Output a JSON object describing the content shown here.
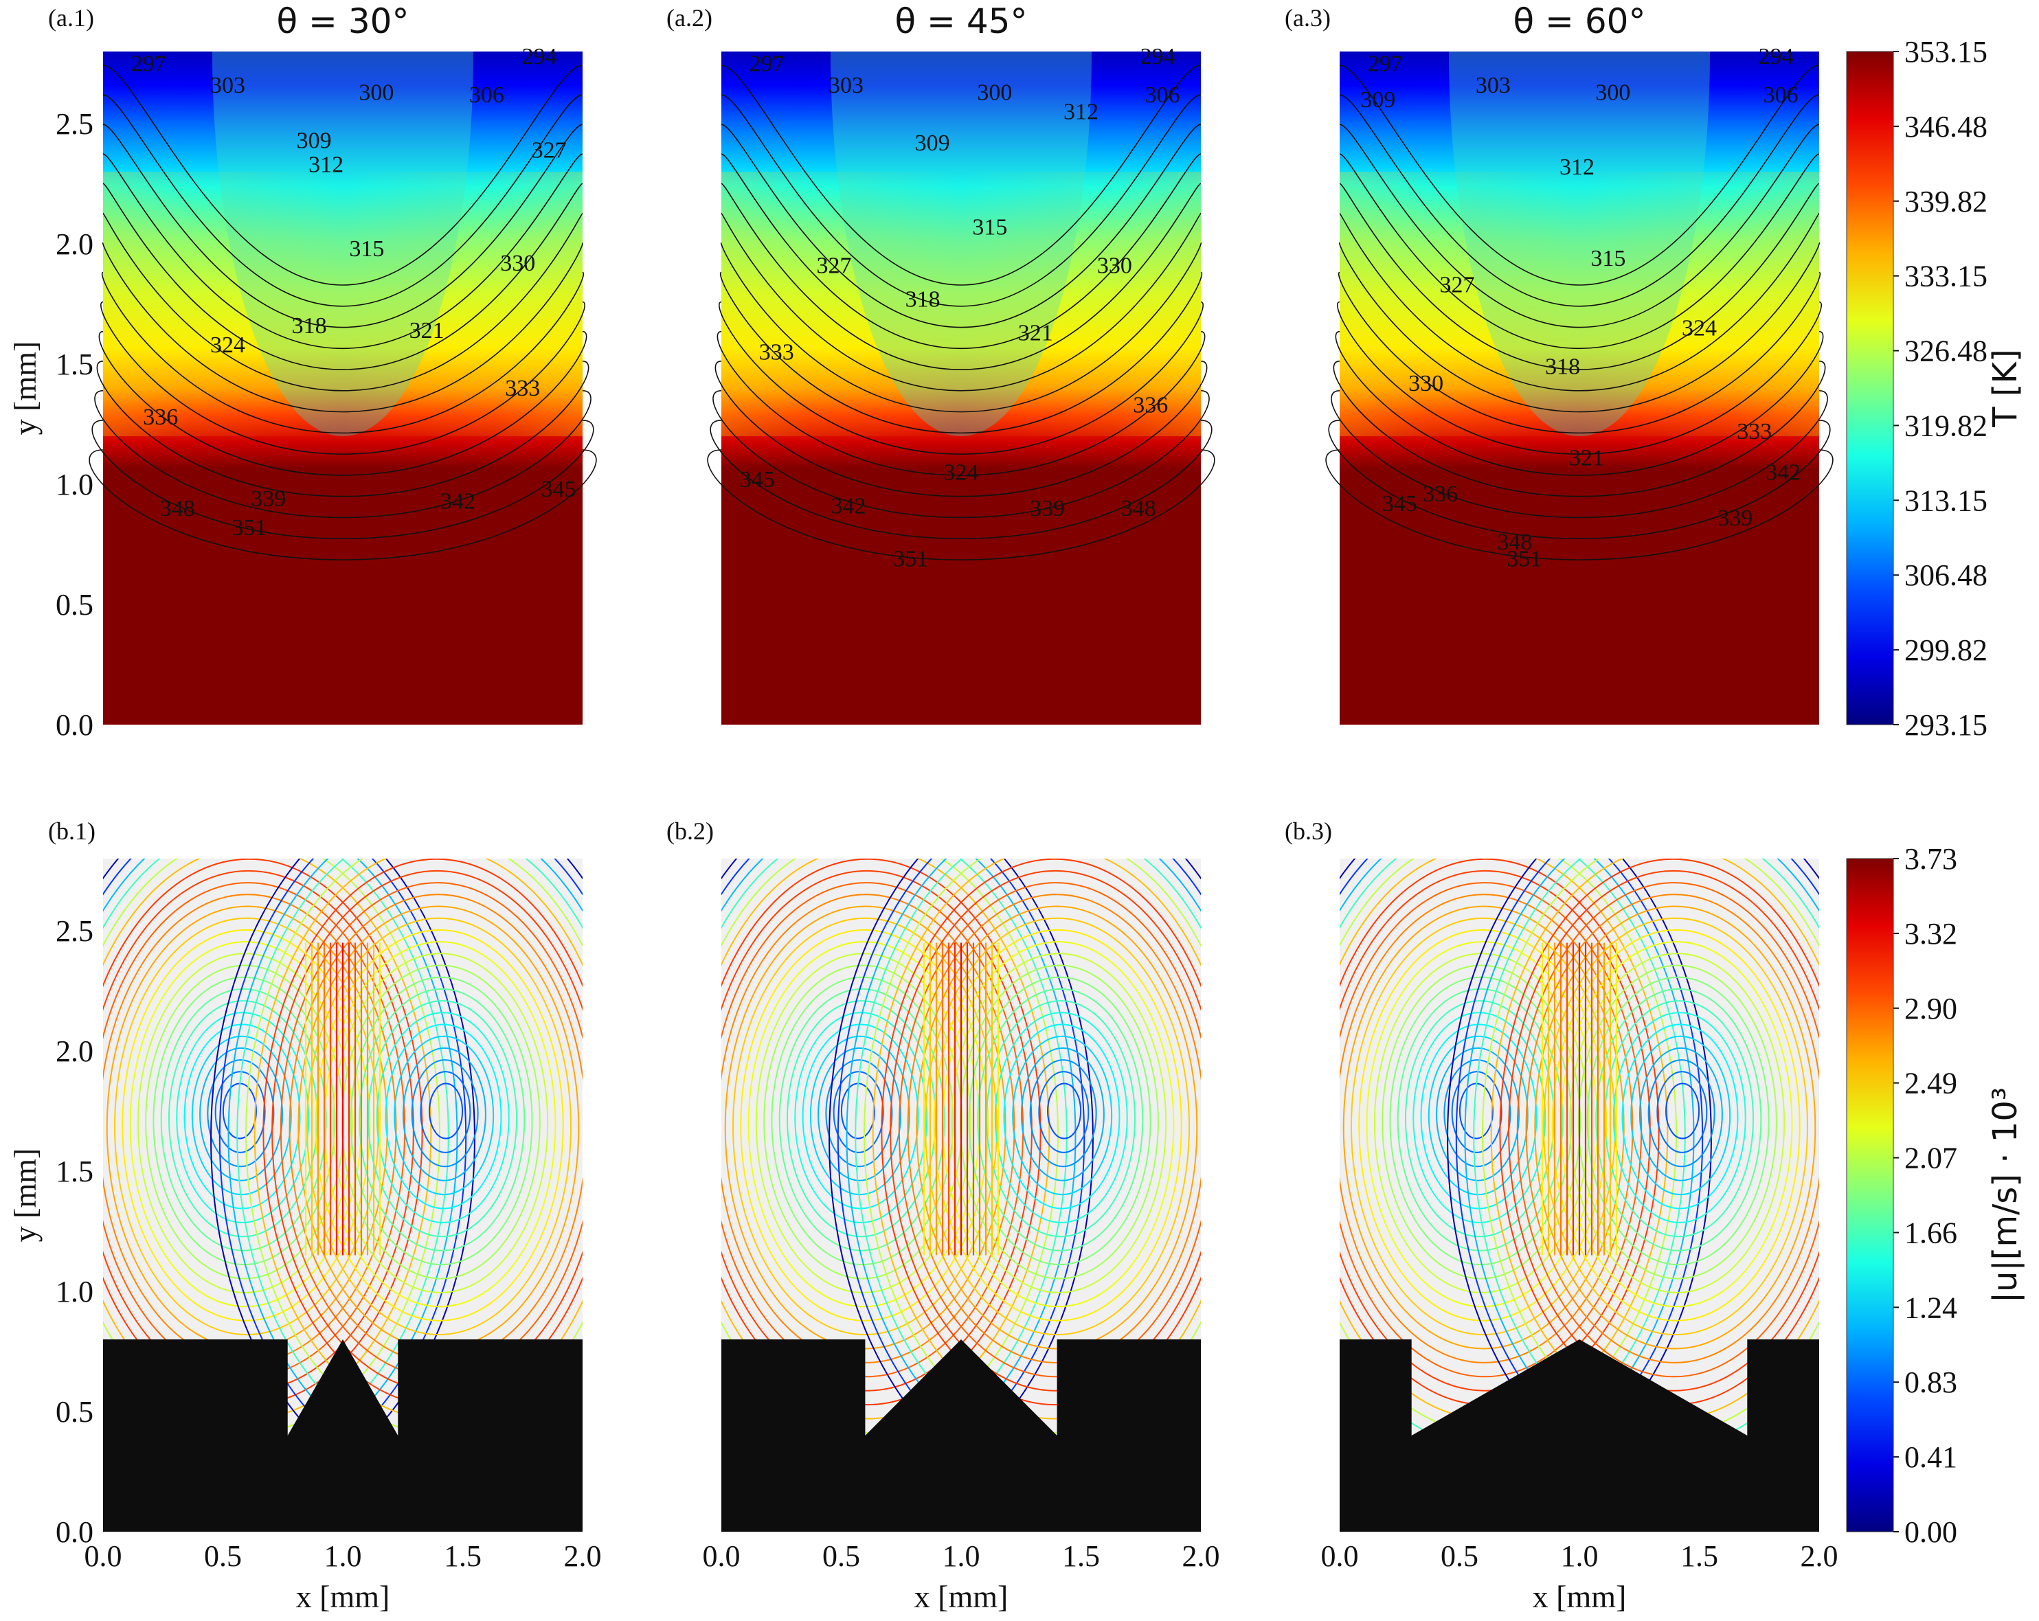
{
  "top_titles": [
    "θ = 30°",
    "θ = 45°",
    "θ = 60°"
  ],
  "panel_labels": {
    "top": [
      "(a.1)",
      "(a.2)",
      "(a.3)"
    ],
    "bottom": [
      "(b.1)",
      "(b.2)",
      "(b.3)"
    ]
  },
  "axes": {
    "xlabel": "x [mm]",
    "ylabel": "y [mm]",
    "x_ticks": [
      "0.0",
      "0.5",
      "1.0",
      "1.5",
      "2.0"
    ],
    "y_ticks": [
      "0.0",
      "0.5",
      "1.0",
      "1.5",
      "2.0",
      "2.5"
    ]
  },
  "colorbar_temperature": {
    "label": "T [K]",
    "ticks": [
      "353.15",
      "346.48",
      "339.82",
      "333.15",
      "326.48",
      "319.82",
      "313.15",
      "306.48",
      "299.82",
      "293.15"
    ],
    "colormap": "jet"
  },
  "colorbar_velocity": {
    "label": "|u|[m/s] · 10³",
    "ticks": [
      "3.73",
      "3.32",
      "2.90",
      "2.49",
      "2.07",
      "1.66",
      "1.24",
      "0.83",
      "0.41",
      "0.00"
    ],
    "colormap": "jet"
  },
  "chart_data": [
    {
      "type": "heatmap",
      "title": "θ = 30°",
      "panel": "(a.1)",
      "xlabel": "",
      "ylabel": "y [mm]",
      "xlim": [
        0,
        2.0
      ],
      "ylim": [
        0,
        2.8
      ],
      "vmin": 293.15,
      "vmax": 353.15,
      "contour_labels": [
        {
          "x": 0.19,
          "y": 2.75,
          "text": "297"
        },
        {
          "x": 0.52,
          "y": 2.66,
          "text": "303"
        },
        {
          "x": 1.14,
          "y": 2.63,
          "text": "300"
        },
        {
          "x": 1.6,
          "y": 2.62,
          "text": "306"
        },
        {
          "x": 1.82,
          "y": 2.78,
          "text": "294"
        },
        {
          "x": 0.88,
          "y": 2.43,
          "text": "309"
        },
        {
          "x": 0.93,
          "y": 2.33,
          "text": "312"
        },
        {
          "x": 1.1,
          "y": 1.98,
          "text": "315"
        },
        {
          "x": 1.86,
          "y": 2.39,
          "text": "327"
        },
        {
          "x": 1.73,
          "y": 1.92,
          "text": "330"
        },
        {
          "x": 0.86,
          "y": 1.66,
          "text": "318"
        },
        {
          "x": 1.35,
          "y": 1.64,
          "text": "321"
        },
        {
          "x": 0.52,
          "y": 1.58,
          "text": "324"
        },
        {
          "x": 1.75,
          "y": 1.4,
          "text": "333"
        },
        {
          "x": 0.24,
          "y": 1.28,
          "text": "336"
        },
        {
          "x": 0.69,
          "y": 0.94,
          "text": "339"
        },
        {
          "x": 1.48,
          "y": 0.93,
          "text": "342"
        },
        {
          "x": 1.9,
          "y": 0.98,
          "text": "345"
        },
        {
          "x": 0.31,
          "y": 0.9,
          "text": "348"
        },
        {
          "x": 0.61,
          "y": 0.82,
          "text": "351"
        }
      ]
    },
    {
      "type": "heatmap",
      "title": "θ = 45°",
      "panel": "(a.2)",
      "xlabel": "",
      "ylabel": "",
      "xlim": [
        0,
        2.0
      ],
      "ylim": [
        0,
        2.8
      ],
      "vmin": 293.15,
      "vmax": 353.15,
      "contour_labels": [
        {
          "x": 0.19,
          "y": 2.75,
          "text": "297"
        },
        {
          "x": 0.52,
          "y": 2.66,
          "text": "303"
        },
        {
          "x": 1.14,
          "y": 2.63,
          "text": "300"
        },
        {
          "x": 1.5,
          "y": 2.55,
          "text": "312"
        },
        {
          "x": 1.84,
          "y": 2.62,
          "text": "306"
        },
        {
          "x": 1.82,
          "y": 2.78,
          "text": "294"
        },
        {
          "x": 0.88,
          "y": 2.42,
          "text": "309"
        },
        {
          "x": 1.12,
          "y": 2.07,
          "text": "315"
        },
        {
          "x": 0.47,
          "y": 1.91,
          "text": "327"
        },
        {
          "x": 1.64,
          "y": 1.91,
          "text": "330"
        },
        {
          "x": 0.84,
          "y": 1.77,
          "text": "318"
        },
        {
          "x": 1.31,
          "y": 1.63,
          "text": "321"
        },
        {
          "x": 0.23,
          "y": 1.55,
          "text": "333"
        },
        {
          "x": 1.79,
          "y": 1.33,
          "text": "336"
        },
        {
          "x": 1.0,
          "y": 1.05,
          "text": "324"
        },
        {
          "x": 0.15,
          "y": 1.02,
          "text": "345"
        },
        {
          "x": 0.53,
          "y": 0.91,
          "text": "342"
        },
        {
          "x": 1.36,
          "y": 0.9,
          "text": "339"
        },
        {
          "x": 1.74,
          "y": 0.9,
          "text": "348"
        },
        {
          "x": 0.79,
          "y": 0.69,
          "text": "351"
        }
      ]
    },
    {
      "type": "heatmap",
      "title": "θ = 60°",
      "panel": "(a.3)",
      "xlabel": "",
      "ylabel": "",
      "xlim": [
        0,
        2.0
      ],
      "ylim": [
        0,
        2.8
      ],
      "vmin": 293.15,
      "vmax": 353.15,
      "contour_labels": [
        {
          "x": 0.19,
          "y": 2.75,
          "text": "297"
        },
        {
          "x": 0.16,
          "y": 2.6,
          "text": "309"
        },
        {
          "x": 0.64,
          "y": 2.66,
          "text": "303"
        },
        {
          "x": 1.14,
          "y": 2.63,
          "text": "300"
        },
        {
          "x": 1.84,
          "y": 2.62,
          "text": "306"
        },
        {
          "x": 1.82,
          "y": 2.78,
          "text": "294"
        },
        {
          "x": 0.99,
          "y": 2.32,
          "text": "312"
        },
        {
          "x": 1.12,
          "y": 1.94,
          "text": "315"
        },
        {
          "x": 0.49,
          "y": 1.83,
          "text": "327"
        },
        {
          "x": 1.5,
          "y": 1.65,
          "text": "324"
        },
        {
          "x": 0.93,
          "y": 1.49,
          "text": "318"
        },
        {
          "x": 0.36,
          "y": 1.42,
          "text": "330"
        },
        {
          "x": 1.03,
          "y": 1.11,
          "text": "321"
        },
        {
          "x": 1.73,
          "y": 1.22,
          "text": "333"
        },
        {
          "x": 1.85,
          "y": 1.05,
          "text": "342"
        },
        {
          "x": 0.42,
          "y": 0.96,
          "text": "336"
        },
        {
          "x": 0.25,
          "y": 0.92,
          "text": "345"
        },
        {
          "x": 0.73,
          "y": 0.76,
          "text": "348"
        },
        {
          "x": 0.77,
          "y": 0.69,
          "text": "351"
        },
        {
          "x": 1.65,
          "y": 0.86,
          "text": "339"
        }
      ]
    },
    {
      "type": "heatmap",
      "title": "",
      "panel": "(b.1)",
      "xlabel": "x [mm]",
      "ylabel": "y [mm]",
      "xlim": [
        0,
        2.0
      ],
      "ylim": [
        0,
        2.8
      ],
      "vmin": 0.0,
      "vmax": 3.73,
      "notch_angle_deg": 30
    },
    {
      "type": "heatmap",
      "title": "",
      "panel": "(b.2)",
      "xlabel": "x [mm]",
      "ylabel": "",
      "xlim": [
        0,
        2.0
      ],
      "ylim": [
        0,
        2.8
      ],
      "vmin": 0.0,
      "vmax": 3.73,
      "notch_angle_deg": 45
    },
    {
      "type": "heatmap",
      "title": "",
      "panel": "(b.3)",
      "xlabel": "x [mm]",
      "ylabel": "",
      "xlim": [
        0,
        2.0
      ],
      "ylim": [
        0,
        2.8
      ],
      "vmin": 0.0,
      "vmax": 3.73,
      "notch_angle_deg": 60
    }
  ]
}
